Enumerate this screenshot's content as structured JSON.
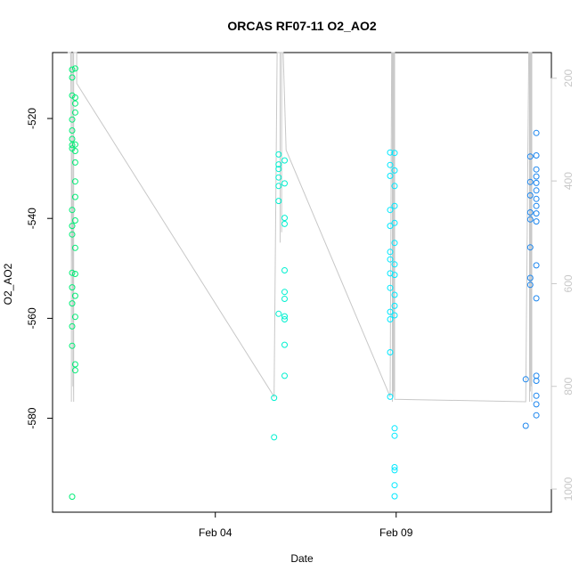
{
  "chart_data": {
    "type": "scatter",
    "title": "ORCAS RF07-11 O2_AO2",
    "xlabel": "Date",
    "ylabel": "O2_AO2",
    "x_ticks": [
      "Feb 04",
      "Feb 09"
    ],
    "y_ticks": [
      -520,
      -540,
      -560,
      -580
    ],
    "y2_ticks": [
      200,
      400,
      600,
      800,
      1000
    ],
    "x_domain": [
      "2016-01-30T12:00",
      "2016-02-13T07:00"
    ],
    "y_lim": [
      -598.8,
      -506.8
    ],
    "y2_lim": [
      1045,
      150
    ],
    "right_axis_series": "pressure trace (gray line)",
    "colors": {
      "line": "#c8c8c8",
      "axis": "#000000",
      "axis2": "#c8c8c8"
    },
    "flights": [
      {
        "color": "#00ee76",
        "points": [
          [
            "2016-01-31T01:00",
            -510.2
          ],
          [
            "2016-01-31T01:00",
            -511.8
          ],
          [
            "2016-01-31T01:00",
            -515.4
          ],
          [
            "2016-01-31T01:00",
            -520.2
          ],
          [
            "2016-01-31T01:00",
            -522.4
          ],
          [
            "2016-01-31T01:00",
            -524.1
          ],
          [
            "2016-01-31T01:00",
            -525.3
          ],
          [
            "2016-01-31T01:00",
            -526.0
          ],
          [
            "2016-01-31T01:00",
            -538.3
          ],
          [
            "2016-01-31T01:00",
            -541.5
          ],
          [
            "2016-01-31T01:00",
            -543.2
          ],
          [
            "2016-01-31T01:00",
            -550.9
          ],
          [
            "2016-01-31T01:00",
            -553.8
          ],
          [
            "2016-01-31T01:00",
            -557.0
          ],
          [
            "2016-01-31T01:00",
            -561.6
          ],
          [
            "2016-01-31T01:00",
            -565.5
          ],
          [
            "2016-01-31T01:00",
            -595.7
          ],
          [
            "2016-01-31T03:00",
            -510.0
          ],
          [
            "2016-01-31T03:00",
            -515.8
          ],
          [
            "2016-01-31T03:00",
            -517.0
          ],
          [
            "2016-01-31T03:00",
            -518.8
          ],
          [
            "2016-01-31T03:00",
            -525.2
          ],
          [
            "2016-01-31T03:00",
            -526.5
          ],
          [
            "2016-01-31T03:00",
            -528.8
          ],
          [
            "2016-01-31T03:00",
            -532.6
          ],
          [
            "2016-01-31T03:00",
            -535.7
          ],
          [
            "2016-01-31T03:00",
            -540.4
          ],
          [
            "2016-01-31T03:00",
            -545.9
          ],
          [
            "2016-01-31T03:00",
            -551.1
          ],
          [
            "2016-01-31T03:00",
            -555.5
          ],
          [
            "2016-01-31T03:00",
            -559.7
          ],
          [
            "2016-01-31T03:00",
            -569.2
          ],
          [
            "2016-01-31T03:00",
            -570.4
          ]
        ]
      },
      {
        "color": "#00f0d0",
        "points": [
          [
            "2016-02-05T15:00",
            -575.9
          ],
          [
            "2016-02-05T15:00",
            -583.8
          ],
          [
            "2016-02-05T18:00",
            -527.2
          ],
          [
            "2016-02-05T18:00",
            -529.2
          ],
          [
            "2016-02-05T18:00",
            -530.1
          ],
          [
            "2016-02-05T18:00",
            -531.8
          ],
          [
            "2016-02-05T18:00",
            -533.5
          ],
          [
            "2016-02-05T18:00",
            -536.5
          ],
          [
            "2016-02-05T18:00",
            -559.1
          ],
          [
            "2016-02-05T22:00",
            -528.4
          ],
          [
            "2016-02-05T22:00",
            -533.0
          ],
          [
            "2016-02-05T22:00",
            -539.9
          ],
          [
            "2016-02-05T22:00",
            -541.1
          ],
          [
            "2016-02-05T22:00",
            -550.4
          ],
          [
            "2016-02-05T22:00",
            -554.7
          ],
          [
            "2016-02-05T22:00",
            -556.1
          ],
          [
            "2016-02-05T22:00",
            -559.6
          ],
          [
            "2016-02-05T22:00",
            -560.2
          ],
          [
            "2016-02-05T22:00",
            -565.3
          ],
          [
            "2016-02-05T22:00",
            -571.5
          ]
        ]
      },
      {
        "color": "#00e8ff",
        "points": [
          [
            "2016-02-08T20:00",
            -526.8
          ],
          [
            "2016-02-08T20:00",
            -529.3
          ],
          [
            "2016-02-08T20:00",
            -531.5
          ],
          [
            "2016-02-08T20:00",
            -538.3
          ],
          [
            "2016-02-08T20:00",
            -541.5
          ],
          [
            "2016-02-08T20:00",
            -546.7
          ],
          [
            "2016-02-08T20:00",
            -548.2
          ],
          [
            "2016-02-08T20:00",
            -551.0
          ],
          [
            "2016-02-08T20:00",
            -553.9
          ],
          [
            "2016-02-08T20:00",
            -558.7
          ],
          [
            "2016-02-08T20:00",
            -560.2
          ],
          [
            "2016-02-08T20:00",
            -566.8
          ],
          [
            "2016-02-08T20:00",
            -575.7
          ],
          [
            "2016-02-08T23:00",
            -526.9
          ],
          [
            "2016-02-08T23:00",
            -530.4
          ],
          [
            "2016-02-08T23:00",
            -533.5
          ],
          [
            "2016-02-08T23:00",
            -537.5
          ],
          [
            "2016-02-08T23:00",
            -540.9
          ],
          [
            "2016-02-08T23:00",
            -544.9
          ],
          [
            "2016-02-08T23:00",
            -549.2
          ],
          [
            "2016-02-08T23:00",
            -551.3
          ],
          [
            "2016-02-08T23:00",
            -555.3
          ],
          [
            "2016-02-08T23:00",
            -557.5
          ],
          [
            "2016-02-08T23:00",
            -559.4
          ],
          [
            "2016-02-08T23:00",
            -582.0
          ],
          [
            "2016-02-08T23:00",
            -583.5
          ],
          [
            "2016-02-08T23:00",
            -589.8
          ],
          [
            "2016-02-08T23:00",
            -590.4
          ],
          [
            "2016-02-08T23:00",
            -593.4
          ],
          [
            "2016-02-08T23:00",
            -595.6
          ]
        ]
      },
      {
        "color": "#1c86ee",
        "points": [
          [
            "2016-02-12T14:00",
            -572.2
          ],
          [
            "2016-02-12T14:00",
            -581.5
          ],
          [
            "2016-02-12T17:00",
            -527.6
          ],
          [
            "2016-02-12T17:00",
            -532.7
          ],
          [
            "2016-02-12T17:00",
            -535.4
          ],
          [
            "2016-02-12T17:00",
            -538.8
          ],
          [
            "2016-02-12T17:00",
            -540.2
          ],
          [
            "2016-02-12T17:00",
            -545.8
          ],
          [
            "2016-02-12T17:00",
            -551.9
          ],
          [
            "2016-02-12T17:00",
            -553.3
          ],
          [
            "2016-02-12T21:00",
            -522.9
          ],
          [
            "2016-02-12T21:00",
            -527.4
          ],
          [
            "2016-02-12T21:00",
            -530.2
          ],
          [
            "2016-02-12T21:00",
            -531.6
          ],
          [
            "2016-02-12T21:00",
            -532.9
          ],
          [
            "2016-02-12T21:00",
            -534.4
          ],
          [
            "2016-02-12T21:00",
            -536.1
          ],
          [
            "2016-02-12T21:00",
            -537.5
          ],
          [
            "2016-02-12T21:00",
            -539.0
          ],
          [
            "2016-02-12T21:00",
            -540.6
          ],
          [
            "2016-02-12T21:00",
            -549.4
          ],
          [
            "2016-02-12T21:00",
            -556.0
          ],
          [
            "2016-02-12T21:00",
            -571.5
          ],
          [
            "2016-02-12T21:00",
            -572.5
          ],
          [
            "2016-02-12T21:00",
            -575.5
          ],
          [
            "2016-02-12T21:00",
            -577.2
          ],
          [
            "2016-02-12T21:00",
            -579.4
          ]
        ]
      }
    ],
    "pressure_line": [
      [
        "2016-01-30T22:00",
        150
      ],
      [
        "2016-01-31T00:00",
        150
      ],
      [
        "2016-01-31T02:00",
        830
      ],
      [
        "2016-01-31T02:00",
        150
      ],
      [
        "2016-01-31T04:00",
        150
      ],
      [
        "2016-01-31T04:00",
        210
      ],
      [
        "2016-02-05T15:00",
        820
      ],
      [
        "2016-02-05T17:00",
        150
      ],
      [
        "2016-02-05T21:00",
        150
      ],
      [
        "2016-02-05T23:00",
        340
      ],
      [
        "2016-02-08T20:00",
        820
      ],
      [
        "2016-02-08T21:00",
        150
      ],
      [
        "2016-02-08T23:00",
        150
      ],
      [
        "2016-02-08T23:00",
        825
      ],
      [
        "2016-02-12T14:00",
        830
      ],
      [
        "2016-02-12T16:00",
        150
      ],
      [
        "2016-02-12T18:00",
        150
      ],
      [
        "2016-02-12T18:00",
        830
      ]
    ],
    "pressure_spikes": [
      [
        "2016-01-31T00:30",
        150,
        830
      ],
      [
        "2016-01-31T01:30",
        150,
        800
      ],
      [
        "2016-02-05T19:00",
        150,
        520
      ],
      [
        "2016-02-05T20:00",
        150,
        500
      ],
      [
        "2016-02-08T21:30",
        150,
        830
      ],
      [
        "2016-02-08T22:00",
        150,
        820
      ],
      [
        "2016-02-08T22:30",
        150,
        810
      ],
      [
        "2016-02-12T16:30",
        150,
        830
      ],
      [
        "2016-02-12T17:00",
        150,
        810
      ],
      [
        "2016-02-12T17:30",
        150,
        800
      ]
    ]
  }
}
